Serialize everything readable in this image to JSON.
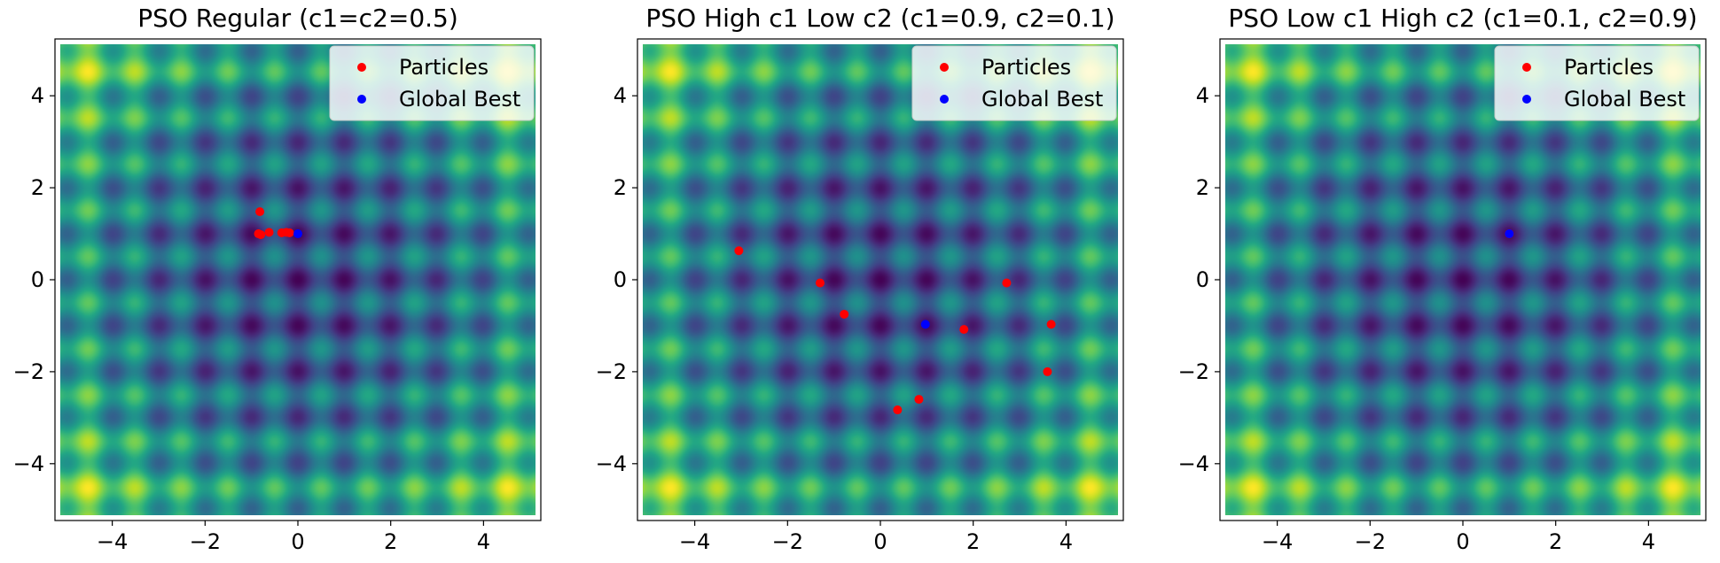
{
  "chart_data": [
    {
      "type": "scatter",
      "title": "PSO Regular (c1=c2=0.5)",
      "xlim": [
        -5.12,
        5.12
      ],
      "ylim": [
        -5.12,
        5.12
      ],
      "xticks": [
        -4,
        -2,
        0,
        2,
        4
      ],
      "yticks": [
        -4,
        -2,
        0,
        2,
        4
      ],
      "background": "rastrigin-heatmap",
      "colormap": "viridis",
      "legend_position": "top-right",
      "series": [
        {
          "name": "Particles",
          "color": "#ff0000",
          "points": [
            [
              -0.82,
              1.48
            ],
            [
              -0.85,
              1.0
            ],
            [
              -0.8,
              0.98
            ],
            [
              -0.62,
              1.03
            ],
            [
              -0.35,
              1.02
            ],
            [
              -0.25,
              1.03
            ],
            [
              -0.18,
              1.02
            ]
          ]
        },
        {
          "name": "Global Best",
          "color": "#0000ff",
          "points": [
            [
              0.0,
              1.0
            ]
          ]
        }
      ]
    },
    {
      "type": "scatter",
      "title": "PSO High c1 Low c2 (c1=0.9, c2=0.1)",
      "xlim": [
        -5.12,
        5.12
      ],
      "ylim": [
        -5.12,
        5.12
      ],
      "xticks": [
        -4,
        -2,
        0,
        2,
        4
      ],
      "yticks": [
        -4,
        -2,
        0,
        2,
        4
      ],
      "background": "rastrigin-heatmap",
      "colormap": "viridis",
      "legend_position": "top-right",
      "series": [
        {
          "name": "Particles",
          "color": "#ff0000",
          "points": [
            [
              -3.05,
              0.63
            ],
            [
              -1.3,
              -0.07
            ],
            [
              -0.78,
              -0.75
            ],
            [
              2.72,
              -0.07
            ],
            [
              1.8,
              -1.08
            ],
            [
              3.68,
              -0.97
            ],
            [
              3.6,
              -2.0
            ],
            [
              0.83,
              -2.6
            ],
            [
              0.37,
              -2.83
            ]
          ]
        },
        {
          "name": "Global Best",
          "color": "#0000ff",
          "points": [
            [
              0.97,
              -0.97
            ]
          ]
        }
      ]
    },
    {
      "type": "scatter",
      "title": "PSO Low c1 High c2 (c1=0.1, c2=0.9)",
      "xlim": [
        -5.12,
        5.12
      ],
      "ylim": [
        -5.12,
        5.12
      ],
      "xticks": [
        -4,
        -2,
        0,
        2,
        4
      ],
      "yticks": [
        -4,
        -2,
        0,
        2,
        4
      ],
      "background": "rastrigin-heatmap",
      "colormap": "viridis",
      "legend_position": "top-right",
      "series": [
        {
          "name": "Particles",
          "color": "#ff0000",
          "points": [
            [
              1.0,
              1.0
            ]
          ]
        },
        {
          "name": "Global Best",
          "color": "#0000ff",
          "points": [
            [
              1.0,
              1.0
            ]
          ]
        }
      ]
    }
  ]
}
